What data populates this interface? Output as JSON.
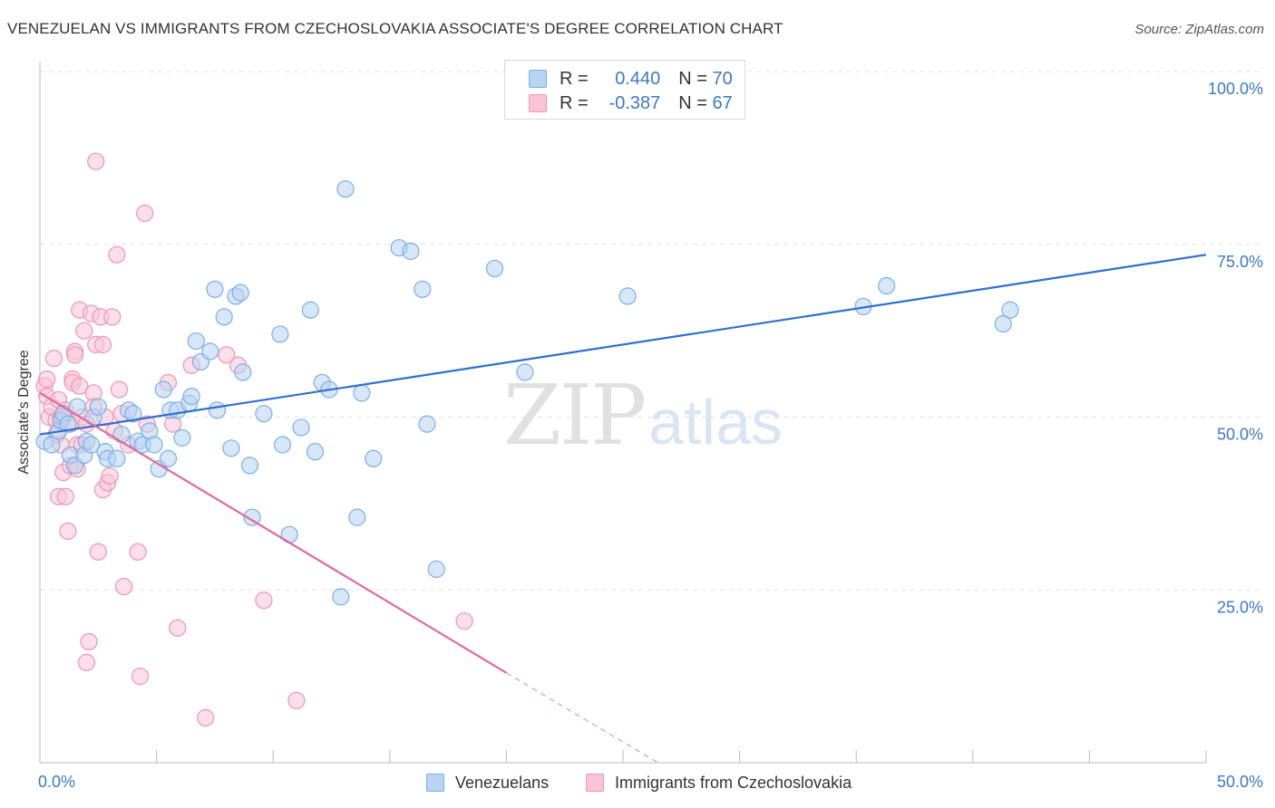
{
  "header": {
    "title": "VENEZUELAN VS IMMIGRANTS FROM CZECHOSLOVAKIA ASSOCIATE'S DEGREE CORRELATION CHART",
    "source": "Source: ZipAtlas.com"
  },
  "watermark": {
    "zip": "ZIP",
    "atlas": "atlas"
  },
  "legend": {
    "rows": [
      {
        "r_label": "R =",
        "r_value": "0.440",
        "n_label": "N =",
        "n_value": "70"
      },
      {
        "r_label": "R =",
        "r_value": "-0.387",
        "n_label": "N =",
        "n_value": "67"
      }
    ]
  },
  "colors": {
    "blue_fill": "#b8d4f3",
    "blue_stroke": "#7aaee8",
    "blue_line": "#2f6fcd",
    "pink_fill": "#f9c5d6",
    "pink_stroke": "#ef94b2",
    "pink_line": "#e26a95",
    "tick_label": "#3a78c9",
    "grid": "#e2e2e2"
  },
  "chart_data": {
    "type": "scatter",
    "title": "VENEZUELAN VS IMMIGRANTS FROM CZECHOSLOVAKIA ASSOCIATE'S DEGREE CORRELATION CHART",
    "xlabel": "",
    "ylabel": "Associate's Degree",
    "xlim": [
      0,
      50
    ],
    "ylim": [
      0,
      100
    ],
    "x_ticks": [
      "0.0%",
      "50.0%"
    ],
    "y_ticks": [
      {
        "value": 100,
        "label": "100.0%"
      },
      {
        "value": 75,
        "label": "75.0%"
      },
      {
        "value": 50,
        "label": "50.0%"
      },
      {
        "value": 25,
        "label": "25.0%"
      }
    ],
    "grid": true,
    "legend_position": "bottom",
    "series": [
      {
        "name": "Venezuelans",
        "trend": {
          "x": [
            0,
            50
          ],
          "y": [
            47.5,
            73.5
          ]
        },
        "points": [
          [
            0.2,
            46.5
          ],
          [
            0.5,
            46.0
          ],
          [
            0.8,
            48.0
          ],
          [
            0.9,
            49.5
          ],
          [
            1.0,
            50.5
          ],
          [
            1.2,
            49.0
          ],
          [
            1.3,
            44.5
          ],
          [
            1.5,
            43.0
          ],
          [
            1.9,
            44.5
          ],
          [
            2.0,
            46.5
          ],
          [
            2.3,
            50.0
          ],
          [
            2.5,
            51.5
          ],
          [
            2.8,
            45.0
          ],
          [
            2.9,
            44.0
          ],
          [
            3.3,
            44.0
          ],
          [
            3.5,
            47.5
          ],
          [
            3.8,
            51.0
          ],
          [
            4.0,
            50.5
          ],
          [
            4.2,
            46.5
          ],
          [
            4.4,
            46.0
          ],
          [
            4.7,
            48.0
          ],
          [
            4.9,
            46.0
          ],
          [
            5.1,
            42.5
          ],
          [
            5.3,
            54.0
          ],
          [
            5.5,
            44.0
          ],
          [
            5.6,
            51.0
          ],
          [
            5.9,
            51.0
          ],
          [
            6.1,
            47.0
          ],
          [
            6.4,
            52.0
          ],
          [
            6.5,
            53.0
          ],
          [
            6.7,
            61.0
          ],
          [
            6.9,
            58.0
          ],
          [
            7.3,
            59.5
          ],
          [
            7.5,
            68.5
          ],
          [
            7.6,
            51.0
          ],
          [
            7.9,
            64.5
          ],
          [
            8.2,
            45.5
          ],
          [
            8.4,
            67.5
          ],
          [
            8.6,
            68.0
          ],
          [
            8.7,
            56.5
          ],
          [
            9.0,
            43.0
          ],
          [
            9.1,
            35.5
          ],
          [
            9.6,
            50.5
          ],
          [
            10.3,
            62.0
          ],
          [
            10.4,
            46.0
          ],
          [
            10.7,
            33.0
          ],
          [
            11.2,
            48.5
          ],
          [
            11.6,
            65.5
          ],
          [
            11.8,
            45.0
          ],
          [
            12.1,
            55.0
          ],
          [
            12.4,
            54.0
          ],
          [
            12.9,
            24.0
          ],
          [
            13.1,
            83.0
          ],
          [
            13.6,
            35.5
          ],
          [
            13.8,
            53.5
          ],
          [
            14.3,
            44.0
          ],
          [
            15.4,
            74.5
          ],
          [
            15.9,
            74.0
          ],
          [
            16.4,
            68.5
          ],
          [
            16.6,
            49.0
          ],
          [
            17.0,
            28.0
          ],
          [
            19.5,
            71.5
          ],
          [
            20.8,
            56.5
          ],
          [
            25.2,
            67.5
          ],
          [
            35.3,
            66.0
          ],
          [
            36.3,
            69.0
          ],
          [
            41.3,
            63.5
          ],
          [
            41.6,
            65.5
          ],
          [
            1.6,
            51.5
          ],
          [
            2.2,
            46.0
          ]
        ]
      },
      {
        "name": "Immigrants from Czechoslovakia",
        "trend": {
          "x": [
            0,
            20
          ],
          "y": [
            53.5,
            13.0
          ]
        },
        "trend_extension": {
          "x": [
            20,
            26.5
          ],
          "y": [
            13.0,
            0
          ]
        },
        "points": [
          [
            0.2,
            54.5
          ],
          [
            0.3,
            55.5
          ],
          [
            0.3,
            53.0
          ],
          [
            0.4,
            50.0
          ],
          [
            0.5,
            51.5
          ],
          [
            0.6,
            58.5
          ],
          [
            0.7,
            49.5
          ],
          [
            0.8,
            52.5
          ],
          [
            0.8,
            38.5
          ],
          [
            0.9,
            46.0
          ],
          [
            0.9,
            50.0
          ],
          [
            1.0,
            42.0
          ],
          [
            1.0,
            50.5
          ],
          [
            1.1,
            51.0
          ],
          [
            1.1,
            38.5
          ],
          [
            1.2,
            33.5
          ],
          [
            1.3,
            43.0
          ],
          [
            1.3,
            49.0
          ],
          [
            1.4,
            55.5
          ],
          [
            1.4,
            55.0
          ],
          [
            1.5,
            59.5
          ],
          [
            1.5,
            59.0
          ],
          [
            1.6,
            46.0
          ],
          [
            1.6,
            42.5
          ],
          [
            1.7,
            54.5
          ],
          [
            1.7,
            65.5
          ],
          [
            1.8,
            50.0
          ],
          [
            1.8,
            46.0
          ],
          [
            1.9,
            62.5
          ],
          [
            2.0,
            49.0
          ],
          [
            2.1,
            17.5
          ],
          [
            2.2,
            65.0
          ],
          [
            2.3,
            53.5
          ],
          [
            2.3,
            51.5
          ],
          [
            2.4,
            87.0
          ],
          [
            2.4,
            60.5
          ],
          [
            2.5,
            30.5
          ],
          [
            2.6,
            64.5
          ],
          [
            2.7,
            60.5
          ],
          [
            2.7,
            39.5
          ],
          [
            2.8,
            50.0
          ],
          [
            2.9,
            40.5
          ],
          [
            3.0,
            41.5
          ],
          [
            3.1,
            64.5
          ],
          [
            3.2,
            48.0
          ],
          [
            3.3,
            73.5
          ],
          [
            3.4,
            54.0
          ],
          [
            3.5,
            50.5
          ],
          [
            3.6,
            25.5
          ],
          [
            3.8,
            46.0
          ],
          [
            4.2,
            30.5
          ],
          [
            4.3,
            12.5
          ],
          [
            4.5,
            79.5
          ],
          [
            4.6,
            49.0
          ],
          [
            5.5,
            55.0
          ],
          [
            5.7,
            49.0
          ],
          [
            5.9,
            19.5
          ],
          [
            6.5,
            57.5
          ],
          [
            7.1,
            6.5
          ],
          [
            8.0,
            59.0
          ],
          [
            8.5,
            57.5
          ],
          [
            9.6,
            23.5
          ],
          [
            11.0,
            9.0
          ],
          [
            18.2,
            20.5
          ],
          [
            1.0,
            50.0
          ],
          [
            0.7,
            47.5
          ],
          [
            2.0,
            14.5
          ]
        ]
      }
    ]
  },
  "bottom_legend": {
    "items": [
      {
        "label": "Venezuelans"
      },
      {
        "label": "Immigrants from Czechoslovakia"
      }
    ]
  }
}
